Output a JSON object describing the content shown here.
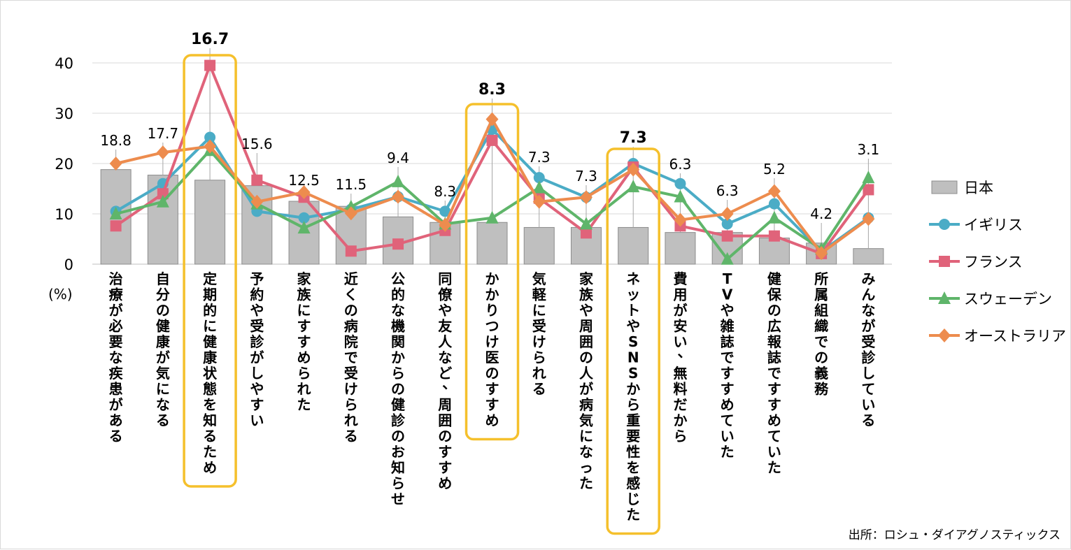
{
  "chart_data": {
    "type": "bar+line",
    "unit_label": "(%)",
    "ylim": [
      0,
      40
    ],
    "yticks": [
      0,
      10,
      20,
      30,
      40
    ],
    "categories": [
      "治療が必要な疾患がある",
      "自分の健康が気になる",
      "定期的に健康状態を知るため",
      "予約や受診がしやすい",
      "家族にすすめられた",
      "近くの病院で受けられる",
      "公的な機関からの健診のお知らせ",
      "同僚や友人など、周囲のすすめ",
      "かかりつけ医のすすめ",
      "気軽に受けられる",
      "家族や周囲の人が病気になった",
      "ネットやSNSから重要性を感じた",
      "費用が安い、無料だから",
      "TVや雑誌ですすめていた",
      "健保の広報誌ですすめていた",
      "所属組織での義務",
      "みんなが受診している"
    ],
    "bar_series": {
      "name": "日本",
      "color": "#bfbfbf",
      "values": [
        18.8,
        17.7,
        16.7,
        15.6,
        12.5,
        11.5,
        9.4,
        8.3,
        8.3,
        7.3,
        7.3,
        7.3,
        6.3,
        6.3,
        5.2,
        4.2,
        3.1
      ],
      "labels": [
        "18.8",
        "17.7",
        "16.7",
        "15.6",
        "12.5",
        "11.5",
        "9.4",
        "8.3",
        "8.3",
        "7.3",
        "7.3",
        "7.3",
        "6.3",
        "6.3",
        "5.2",
        "4.2",
        "3.1"
      ]
    },
    "line_series": [
      {
        "name": "イギリス",
        "color": "#4bacc6",
        "marker": "circle",
        "values": [
          10.5,
          16,
          25.2,
          10.5,
          9.2,
          10.9,
          13.4,
          10.5,
          26.8,
          17.2,
          13.3,
          20,
          16,
          8,
          12,
          2.5,
          9.2
        ]
      },
      {
        "name": "フランス",
        "color": "#e0637a",
        "marker": "square",
        "values": [
          7.6,
          14,
          39.5,
          16.7,
          13.3,
          2.6,
          4,
          6.7,
          24.6,
          13.1,
          6.2,
          19.3,
          7.6,
          5.6,
          5.6,
          2.1,
          14.8
        ]
      },
      {
        "name": "スウェーデン",
        "color": "#5fb56a",
        "marker": "triangle",
        "values": [
          10,
          12.4,
          22.6,
          12,
          7.2,
          11.4,
          16.4,
          8,
          9.2,
          15.2,
          8,
          15.4,
          13.4,
          1,
          9.2,
          3,
          17.2
        ]
      },
      {
        "name": "オーストラリア",
        "color": "#ed8c4e",
        "marker": "diamond",
        "values": [
          20,
          22.2,
          23.4,
          12.4,
          14.3,
          10.1,
          13.4,
          7.8,
          28.8,
          12.4,
          13.3,
          18.8,
          8.8,
          10,
          14.5,
          2.2,
          9
        ]
      }
    ],
    "highlighted": [
      {
        "category": "定期的に健康状態を知るため",
        "label": "16.7"
      },
      {
        "category": "かかりつけ医のすすめ",
        "label": "8.3"
      },
      {
        "category": "ネットやSNSから重要性を感じた",
        "label": "7.3"
      }
    ],
    "highlight_color": "#f5c02c"
  },
  "source": "出所：ロシュ・ダイアグノスティックス"
}
